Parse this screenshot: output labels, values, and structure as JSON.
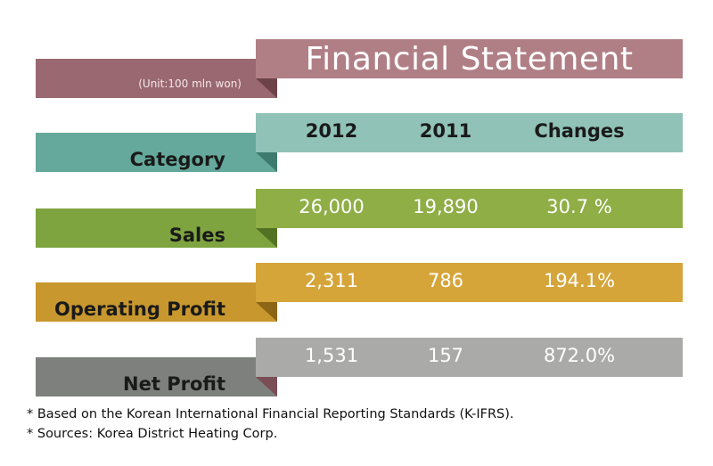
{
  "title": "Financial Statement",
  "unit": "(Unit:100 mln won)",
  "header": {
    "category": "Category",
    "col_2012": "2012",
    "col_2011": "2011",
    "col_changes": "Changes"
  },
  "rows": [
    {
      "label": "Sales",
      "v2012": "26,000",
      "v2011": "19,890",
      "change": "30.7 %"
    },
    {
      "label": "Operating Profit",
      "v2012": "2,311",
      "v2011": "786",
      "change": "194.1%"
    },
    {
      "label": "Net Profit",
      "v2012": "1,531",
      "v2011": "157",
      "change": "872.0%"
    }
  ],
  "footnotes": [
    "* Based on the Korean International Financial Reporting Standards (K-IFRS).",
    "* Sources: Korea District Heating Corp."
  ],
  "colors": {
    "title_left": "#9a6870",
    "title_right": "#b07f85",
    "title_fold": "#6e4249",
    "header_left": "#64a99b",
    "header_right": "#91c2b7",
    "header_fold": "#3e7a6e",
    "sales_left": "#7ea43f",
    "sales_right": "#8fae46",
    "sales_fold": "#537223",
    "op_left": "#c8972e",
    "op_right": "#d6a53a",
    "op_fold": "#8c6516",
    "net_left": "#7e807e",
    "net_right": "#aaaba9",
    "net_fold": "#7a4e55"
  }
}
